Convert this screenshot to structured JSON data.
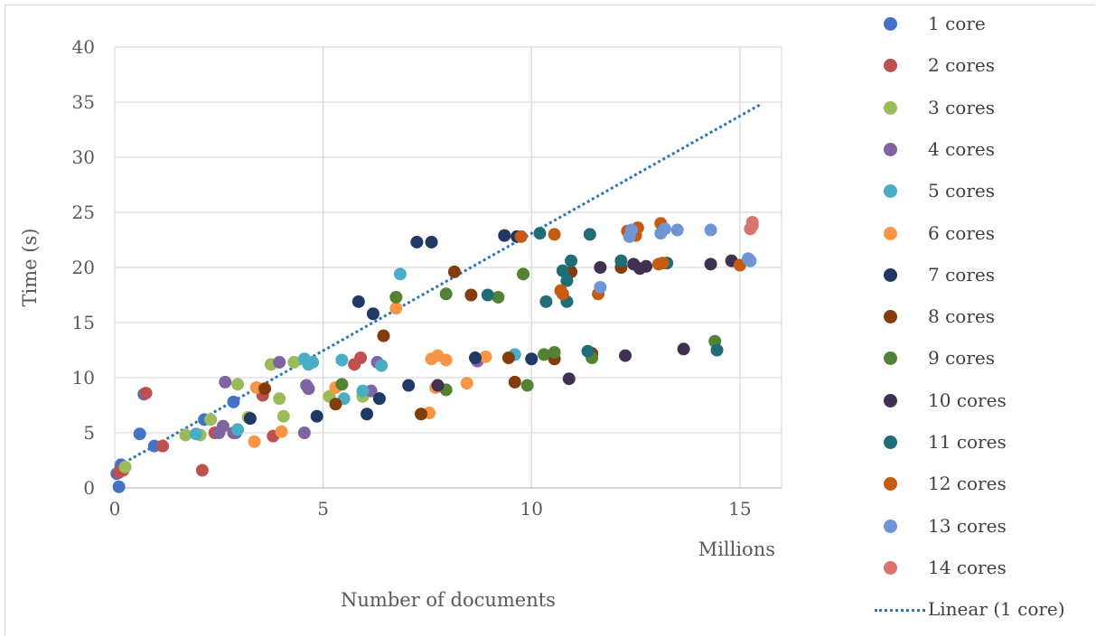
{
  "chart_data": {
    "type": "scatter",
    "title": "",
    "xlabel": "Number of documents",
    "x_unit_label": "Millions",
    "ylabel": "Time (s)",
    "xlim": [
      0,
      16
    ],
    "ylim": [
      0,
      40
    ],
    "x_ticks": [
      0,
      5,
      10,
      15
    ],
    "y_ticks": [
      0,
      5,
      10,
      15,
      20,
      25,
      30,
      35,
      40
    ],
    "grid": true,
    "legend_position": "right",
    "trendline": {
      "name": "Linear (1 core)",
      "color": "#2e75b6",
      "x": [
        0.0,
        15.5
      ],
      "y": [
        1.8,
        34.8
      ]
    },
    "series": [
      {
        "name": "1 core",
        "color": "#4472c4",
        "points": [
          [
            0.05,
            1.3
          ],
          [
            0.15,
            2.1
          ],
          [
            0.1,
            0.1
          ],
          [
            0.6,
            4.9
          ],
          [
            0.7,
            8.5
          ],
          [
            0.95,
            3.8
          ],
          [
            2.15,
            6.2
          ],
          [
            2.85,
            7.8
          ],
          [
            2.9,
            5.0
          ]
        ]
      },
      {
        "name": "2 cores",
        "color": "#c0504d",
        "points": [
          [
            0.1,
            1.4
          ],
          [
            0.2,
            1.6
          ],
          [
            0.75,
            8.6
          ],
          [
            1.15,
            3.8
          ],
          [
            2.1,
            1.6
          ],
          [
            2.4,
            5.0
          ],
          [
            3.55,
            8.4
          ],
          [
            3.8,
            4.7
          ],
          [
            5.75,
            11.2
          ],
          [
            5.9,
            11.8
          ]
        ]
      },
      {
        "name": "3 cores",
        "color": "#9bbb59",
        "points": [
          [
            0.25,
            1.9
          ],
          [
            1.7,
            4.8
          ],
          [
            2.05,
            4.8
          ],
          [
            2.3,
            6.2
          ],
          [
            2.95,
            9.4
          ],
          [
            3.2,
            6.4
          ],
          [
            3.75,
            11.2
          ],
          [
            3.95,
            8.1
          ],
          [
            4.05,
            6.5
          ],
          [
            4.3,
            11.4
          ],
          [
            5.15,
            8.3
          ],
          [
            5.95,
            8.3
          ]
        ]
      },
      {
        "name": "4 cores",
        "color": "#8064a2",
        "points": [
          [
            2.5,
            5.0
          ],
          [
            2.6,
            5.6
          ],
          [
            2.65,
            9.6
          ],
          [
            2.85,
            5.0
          ],
          [
            3.95,
            11.4
          ],
          [
            4.55,
            5.0
          ],
          [
            4.6,
            9.3
          ],
          [
            4.65,
            9.0
          ],
          [
            6.15,
            8.8
          ],
          [
            6.3,
            11.4
          ],
          [
            8.7,
            11.5
          ]
        ]
      },
      {
        "name": "5 cores",
        "color": "#4bacc6",
        "points": [
          [
            1.95,
            4.9
          ],
          [
            2.95,
            5.3
          ],
          [
            4.55,
            11.7
          ],
          [
            4.65,
            11.2
          ],
          [
            4.75,
            11.4
          ],
          [
            5.45,
            11.6
          ],
          [
            5.5,
            8.1
          ],
          [
            5.95,
            8.8
          ],
          [
            6.4,
            11.1
          ],
          [
            6.85,
            19.4
          ],
          [
            9.6,
            12.1
          ]
        ]
      },
      {
        "name": "6 cores",
        "color": "#f79646",
        "points": [
          [
            3.35,
            4.2
          ],
          [
            3.4,
            9.1
          ],
          [
            4.0,
            5.1
          ],
          [
            5.3,
            9.1
          ],
          [
            6.75,
            16.3
          ],
          [
            7.55,
            6.8
          ],
          [
            7.6,
            11.7
          ],
          [
            7.7,
            9.1
          ],
          [
            7.75,
            12.0
          ],
          [
            7.95,
            11.6
          ],
          [
            8.45,
            9.5
          ],
          [
            8.9,
            11.9
          ]
        ]
      },
      {
        "name": "7 cores",
        "color": "#1f3864",
        "points": [
          [
            3.25,
            6.3
          ],
          [
            4.85,
            6.5
          ],
          [
            5.85,
            16.9
          ],
          [
            6.05,
            6.7
          ],
          [
            6.2,
            15.8
          ],
          [
            6.35,
            8.1
          ],
          [
            7.05,
            9.3
          ],
          [
            7.25,
            22.3
          ],
          [
            7.6,
            22.3
          ],
          [
            8.65,
            11.8
          ],
          [
            9.35,
            22.9
          ],
          [
            9.65,
            22.8
          ],
          [
            10.0,
            11.7
          ]
        ]
      },
      {
        "name": "8 cores",
        "color": "#833c0b",
        "points": [
          [
            3.6,
            9.0
          ],
          [
            5.3,
            7.6
          ],
          [
            6.45,
            13.8
          ],
          [
            7.35,
            6.7
          ],
          [
            8.15,
            19.6
          ],
          [
            8.55,
            17.5
          ],
          [
            9.45,
            11.8
          ],
          [
            9.6,
            9.6
          ],
          [
            10.55,
            11.7
          ],
          [
            10.95,
            19.6
          ],
          [
            11.45,
            12.2
          ],
          [
            12.15,
            20.0
          ]
        ]
      },
      {
        "name": "9 cores",
        "color": "#548235",
        "points": [
          [
            5.45,
            9.4
          ],
          [
            6.75,
            17.3
          ],
          [
            7.95,
            17.6
          ],
          [
            7.95,
            8.9
          ],
          [
            9.2,
            17.3
          ],
          [
            9.8,
            19.4
          ],
          [
            9.9,
            9.3
          ],
          [
            10.3,
            12.1
          ],
          [
            10.55,
            12.3
          ],
          [
            11.45,
            11.8
          ],
          [
            14.4,
            13.3
          ]
        ]
      },
      {
        "name": "10 cores",
        "color": "#403152",
        "points": [
          [
            7.75,
            9.3
          ],
          [
            10.9,
            9.9
          ],
          [
            11.65,
            20.0
          ],
          [
            12.25,
            12.0
          ],
          [
            12.45,
            20.3
          ],
          [
            12.6,
            19.9
          ],
          [
            12.75,
            20.1
          ],
          [
            13.65,
            12.6
          ],
          [
            14.3,
            20.3
          ],
          [
            14.8,
            20.6
          ]
        ]
      },
      {
        "name": "11 cores",
        "color": "#1f6e77",
        "points": [
          [
            8.95,
            17.5
          ],
          [
            10.2,
            23.1
          ],
          [
            10.35,
            16.9
          ],
          [
            10.75,
            19.7
          ],
          [
            10.85,
            18.8
          ],
          [
            10.85,
            16.9
          ],
          [
            10.95,
            20.6
          ],
          [
            11.35,
            12.4
          ],
          [
            11.4,
            23.0
          ],
          [
            12.15,
            20.6
          ],
          [
            13.25,
            20.4
          ],
          [
            14.45,
            12.5
          ]
        ]
      },
      {
        "name": "12 cores",
        "color": "#c55a11",
        "points": [
          [
            9.75,
            22.8
          ],
          [
            10.55,
            23.0
          ],
          [
            10.7,
            17.9
          ],
          [
            10.75,
            17.6
          ],
          [
            11.6,
            17.6
          ],
          [
            12.3,
            23.3
          ],
          [
            12.5,
            22.9
          ],
          [
            12.55,
            23.6
          ],
          [
            13.05,
            20.3
          ],
          [
            13.1,
            24.0
          ],
          [
            13.15,
            20.4
          ],
          [
            15.0,
            20.2
          ]
        ]
      },
      {
        "name": "13 cores",
        "color": "#6f95d4",
        "points": [
          [
            11.65,
            18.2
          ],
          [
            12.35,
            22.8
          ],
          [
            12.4,
            23.4
          ],
          [
            13.1,
            23.1
          ],
          [
            13.2,
            23.5
          ],
          [
            13.5,
            23.4
          ],
          [
            14.3,
            23.4
          ],
          [
            15.2,
            20.8
          ],
          [
            15.25,
            20.6
          ]
        ]
      },
      {
        "name": "14 cores",
        "color": "#d9736f",
        "points": [
          [
            15.25,
            23.5
          ],
          [
            15.3,
            23.8
          ],
          [
            15.3,
            24.1
          ]
        ]
      }
    ]
  }
}
